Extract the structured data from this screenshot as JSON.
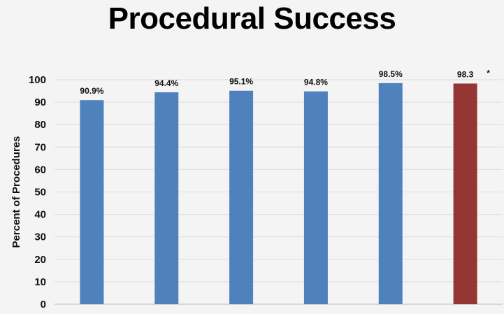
{
  "chart_data": {
    "type": "bar",
    "title": "Procedural Success",
    "xlabel": "",
    "ylabel": "Percent of Procedures",
    "ylim": [
      0,
      100
    ],
    "yticks": [
      "0",
      "10",
      "20",
      "30",
      "40",
      "50",
      "60",
      "70",
      "80",
      "90",
      "100"
    ],
    "grid": true,
    "values": [
      90.9,
      94.4,
      95.1,
      94.8,
      98.5,
      98.3
    ],
    "data_labels": [
      "90.9%",
      "94.4%",
      "95.1%",
      "94.8%",
      "98.5%",
      "98.3"
    ],
    "annotations": [
      {
        "bar_index": 5,
        "text": "*"
      }
    ],
    "colors": [
      "#4f81bd",
      "#4f81bd",
      "#4f81bd",
      "#4f81bd",
      "#4f81bd",
      "#943634"
    ]
  }
}
